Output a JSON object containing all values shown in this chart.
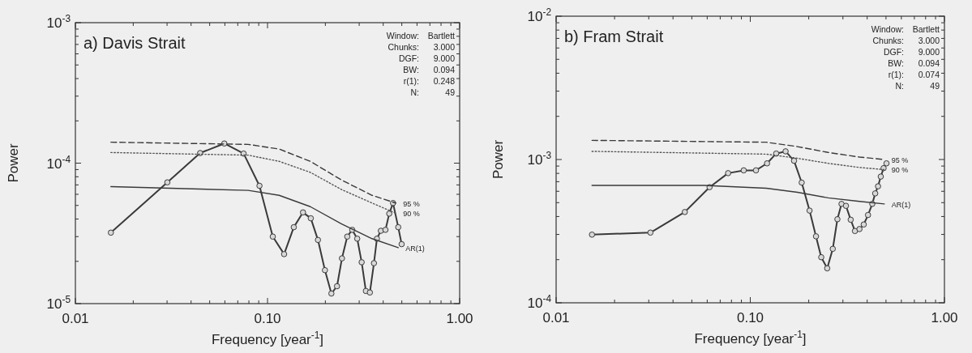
{
  "chart_data": [
    {
      "type": "line",
      "title": "a) Davis Strait",
      "xlabel": "Frequency [year$^{-1}$]",
      "ylabel": "Power",
      "log": "xy",
      "grid": false,
      "xlim": [
        0.01,
        1
      ],
      "ylim": [
        1e-05,
        0.001
      ],
      "xticks": [
        {
          "value": 0.01,
          "label": "0.01"
        },
        {
          "value": 0.02,
          "label": null
        },
        {
          "value": 0.03,
          "label": null
        },
        {
          "value": 0.04,
          "label": null
        },
        {
          "value": 0.05,
          "label": null
        },
        {
          "value": 0.06,
          "label": null
        },
        {
          "value": 0.07,
          "label": null
        },
        {
          "value": 0.08,
          "label": null
        },
        {
          "value": 0.09,
          "label": null
        },
        {
          "value": 0.1,
          "label": "0.10"
        },
        {
          "value": 0.2,
          "label": null
        },
        {
          "value": 0.3,
          "label": null
        },
        {
          "value": 0.4,
          "label": null
        },
        {
          "value": 0.5,
          "label": null
        },
        {
          "value": 0.6,
          "label": null
        },
        {
          "value": 0.7,
          "label": null
        },
        {
          "value": 0.8,
          "label": null
        },
        {
          "value": 0.9,
          "label": null
        },
        {
          "value": 1,
          "label": "1.00"
        }
      ],
      "yticks": [
        {
          "value": 1e-05,
          "label": "10$^{-5}$"
        },
        {
          "value": 2e-05,
          "label": null
        },
        {
          "value": 3e-05,
          "label": null
        },
        {
          "value": 4e-05,
          "label": null
        },
        {
          "value": 5e-05,
          "label": null
        },
        {
          "value": 6e-05,
          "label": null
        },
        {
          "value": 7e-05,
          "label": null
        },
        {
          "value": 8e-05,
          "label": null
        },
        {
          "value": 9e-05,
          "label": null
        },
        {
          "value": 0.0001,
          "label": "10$^{-4}$"
        },
        {
          "value": 0.0002,
          "label": null
        },
        {
          "value": 0.0003,
          "label": null
        },
        {
          "value": 0.0004,
          "label": null
        },
        {
          "value": 0.0005,
          "label": null
        },
        {
          "value": 0.0006,
          "label": null
        },
        {
          "value": 0.0007,
          "label": null
        },
        {
          "value": 0.0008,
          "label": null
        },
        {
          "value": 0.0009,
          "label": null
        },
        {
          "value": 0.001,
          "label": "10$^{-3}$"
        }
      ],
      "annotations": [
        "Window: Bartlett",
        "Chunks: 3.000",
        "DGF: 9.000",
        "BW: 0.094",
        "r(1): 0.248",
        "N: 49"
      ],
      "series": [
        {
          "color": "#3a3a3a",
          "marker": "circle",
          "line_style": "solid",
          "x": [
            0.0153,
            0.0301,
            0.0446,
            0.0596,
            0.0751,
            0.0908,
            0.1065,
            0.122,
            0.137,
            0.153,
            0.168,
            0.183,
            0.199,
            0.215,
            0.23,
            0.244,
            0.26,
            0.276,
            0.293,
            0.309,
            0.325,
            0.341,
            0.358,
            0.371,
            0.389,
            0.411,
            0.43,
            0.45,
            0.479,
            0.499
          ],
          "values": [
            3.2e-05,
            7.3e-05,
            0.000118,
            0.000138,
            0.000117,
            6.9e-05,
            3e-05,
            2.25e-05,
            3.5e-05,
            4.46e-05,
            4.05e-05,
            2.84e-05,
            1.73e-05,
            1.18e-05,
            1.33e-05,
            2.1e-05,
            3e-05,
            3.35e-05,
            2.9e-05,
            1.97e-05,
            1.23e-05,
            1.2e-05,
            1.94e-05,
            2.9e-05,
            3.3e-05,
            3.35e-05,
            4.37e-05,
            5.2e-05,
            3.5e-05,
            2.65e-05
          ]
        },
        {
          "name": "95 %",
          "color": "#3a3a3a",
          "marker": "none",
          "line_style": "dashed",
          "x": [
            0.0153,
            0.0793,
            0.115,
            0.167,
            0.242,
            0.35,
            0.465
          ],
          "values": [
            0.000141,
            0.000136,
            0.000126,
            0.000103,
            7.6e-05,
            5.9e-05,
            5.2e-05
          ]
        },
        {
          "name": "90 %",
          "color": "#555555",
          "marker": "none",
          "line_style": "dotted",
          "x": [
            0.0153,
            0.0793,
            0.115,
            0.167,
            0.242,
            0.35,
            0.465
          ],
          "values": [
            0.000119,
            0.000114,
            0.000103,
            8.6e-05,
            6.5e-05,
            5.2e-05,
            4.4e-05
          ]
        },
        {
          "name": "AR(1)",
          "color": "#3a3a3a",
          "marker": "none",
          "line_style": "solid",
          "x": [
            0.0153,
            0.0793,
            0.115,
            0.167,
            0.242,
            0.35,
            0.479
          ],
          "values": [
            6.8e-05,
            6.4e-05,
            5.9e-05,
            4.9e-05,
            3.7e-05,
            2.9e-05,
            2.5e-05
          ]
        }
      ]
    },
    {
      "type": "line",
      "title": "b) Fram Strait",
      "xlabel": "Frequency [year$^{-1}$]",
      "ylabel": "Power",
      "log": "xy",
      "grid": false,
      "xlim": [
        0.01,
        1
      ],
      "ylim": [
        0.0001,
        0.01
      ],
      "xticks": [
        {
          "value": 0.01,
          "label": "0.01"
        },
        {
          "value": 0.02,
          "label": null
        },
        {
          "value": 0.03,
          "label": null
        },
        {
          "value": 0.04,
          "label": null
        },
        {
          "value": 0.05,
          "label": null
        },
        {
          "value": 0.06,
          "label": null
        },
        {
          "value": 0.07,
          "label": null
        },
        {
          "value": 0.08,
          "label": null
        },
        {
          "value": 0.09,
          "label": null
        },
        {
          "value": 0.1,
          "label": "0.10"
        },
        {
          "value": 0.2,
          "label": null
        },
        {
          "value": 0.3,
          "label": null
        },
        {
          "value": 0.4,
          "label": null
        },
        {
          "value": 0.5,
          "label": null
        },
        {
          "value": 0.6,
          "label": null
        },
        {
          "value": 0.7,
          "label": null
        },
        {
          "value": 0.8,
          "label": null
        },
        {
          "value": 0.9,
          "label": null
        },
        {
          "value": 1,
          "label": "1.00"
        }
      ],
      "yticks": [
        {
          "value": 0.0001,
          "label": "10$^{-4}$"
        },
        {
          "value": 0.0002,
          "label": null
        },
        {
          "value": 0.0003,
          "label": null
        },
        {
          "value": 0.0004,
          "label": null
        },
        {
          "value": 0.0005,
          "label": null
        },
        {
          "value": 0.0006,
          "label": null
        },
        {
          "value": 0.0007,
          "label": null
        },
        {
          "value": 0.0008,
          "label": null
        },
        {
          "value": 0.0009,
          "label": null
        },
        {
          "value": 0.001,
          "label": "10$^{-3}$"
        },
        {
          "value": 0.002,
          "label": null
        },
        {
          "value": 0.003,
          "label": null
        },
        {
          "value": 0.004,
          "label": null
        },
        {
          "value": 0.005,
          "label": null
        },
        {
          "value": 0.006,
          "label": null
        },
        {
          "value": 0.007,
          "label": null
        },
        {
          "value": 0.008,
          "label": null
        },
        {
          "value": 0.009,
          "label": null
        },
        {
          "value": 0.01,
          "label": "10$^{-2}$"
        }
      ],
      "annotations": [
        "Window: Bartlett",
        "Chunks: 3.000",
        "DGF: 9.000",
        "BW: 0.094",
        "r(1): 0.074",
        "N: 49"
      ],
      "series": [
        {
          "color": "#3a3a3a",
          "marker": "circle",
          "line_style": "solid",
          "x": [
            0.0153,
            0.0306,
            0.046,
            0.0617,
            0.0769,
            0.0925,
            0.107,
            0.122,
            0.136,
            0.152,
            0.168,
            0.184,
            0.202,
            0.218,
            0.232,
            0.249,
            0.266,
            0.281,
            0.295,
            0.311,
            0.329,
            0.346,
            0.365,
            0.384,
            0.404,
            0.425,
            0.44,
            0.455,
            0.47,
            0.486,
            0.503
          ],
          "values": [
            0.000299,
            0.000309,
            0.00043,
            0.000641,
            0.000803,
            0.00084,
            0.00084,
            0.00094,
            0.0011,
            0.00114,
            0.00098,
            0.00069,
            0.00044,
            0.000291,
            0.000208,
            0.000174,
            0.000238,
            0.000383,
            0.00049,
            0.000475,
            0.00038,
            0.000317,
            0.000327,
            0.000352,
            0.00041,
            0.00049,
            0.00058,
            0.00065,
            0.00076,
            0.00087,
            0.00094
          ]
        },
        {
          "name": "95 %",
          "color": "#3a3a3a",
          "marker": "none",
          "line_style": "dashed",
          "x": [
            0.0153,
            0.121,
            0.175,
            0.252,
            0.365,
            0.49
          ],
          "values": [
            0.00136,
            0.00132,
            0.00123,
            0.00112,
            0.00104,
            0.001
          ]
        },
        {
          "name": "90 %",
          "color": "#555555",
          "marker": "none",
          "line_style": "dotted",
          "x": [
            0.0153,
            0.121,
            0.175,
            0.252,
            0.365,
            0.49
          ],
          "values": [
            0.00114,
            0.00109,
            0.00102,
            0.00094,
            0.00088,
            0.00085
          ]
        },
        {
          "name": "AR(1)",
          "color": "#3a3a3a",
          "marker": "none",
          "line_style": "solid",
          "x": [
            0.0153,
            0.0578,
            0.121,
            0.175,
            0.252,
            0.365,
            0.49
          ],
          "values": [
            0.00066,
            0.00066,
            0.00063,
            0.00059,
            0.00054,
            0.00051,
            0.00049
          ]
        }
      ]
    }
  ]
}
